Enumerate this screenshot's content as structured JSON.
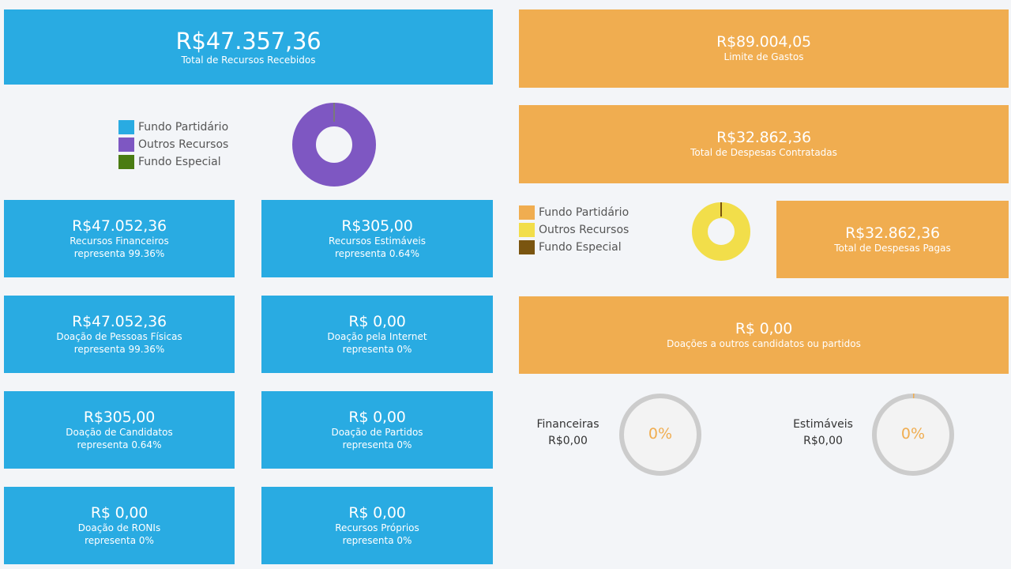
{
  "colors": {
    "blue": "#29abe2",
    "orange": "#f0ad50",
    "purple": "#7e57c2",
    "green": "#4a7c12",
    "yellow": "#f2de4a",
    "brown": "#7a5510",
    "ring_gray": "#cccccc"
  },
  "receipts": {
    "total": {
      "amount": "R$47.357,36",
      "label": "Total de Recursos Recebidos"
    },
    "legend": [
      {
        "label": "Fundo Partidário",
        "color": "#29abe2"
      },
      {
        "label": "Outros Recursos",
        "color": "#7e57c2"
      },
      {
        "label": "Fundo Especial",
        "color": "#4a7c12"
      }
    ],
    "donut_share": {
      "outros_recursos": 0.99,
      "fundo_partidario": 0.01
    },
    "cards": [
      {
        "amount": "R$47.052,36",
        "label": "Recursos Financeiros",
        "pct": "representa 99.36%"
      },
      {
        "amount": "R$305,00",
        "label": "Recursos Estimáveis",
        "pct": "representa 0.64%"
      },
      {
        "amount": "R$47.052,36",
        "label": "Doação de Pessoas Físicas",
        "pct": "representa 99.36%"
      },
      {
        "amount": "R$ 0,00",
        "label": "Doação pela Internet",
        "pct": "representa 0%"
      },
      {
        "amount": "R$305,00",
        "label": "Doação de Candidatos",
        "pct": "representa 0.64%"
      },
      {
        "amount": "R$ 0,00",
        "label": "Doação de Partidos",
        "pct": "representa 0%"
      },
      {
        "amount": "R$ 0,00",
        "label": "Doação de RONIs",
        "pct": "representa 0%"
      },
      {
        "amount": "R$ 0,00",
        "label": "Recursos Próprios",
        "pct": "representa 0%"
      }
    ]
  },
  "expenses": {
    "limit": {
      "amount": "R$89.004,05",
      "label": "Limite de Gastos"
    },
    "contracted": {
      "amount": "R$32.862,36",
      "label": "Total de Despesas Contratadas"
    },
    "legend": [
      {
        "label": "Fundo Partidário",
        "color": "#f0ad50"
      },
      {
        "label": "Outros Recursos",
        "color": "#f2de4a"
      },
      {
        "label": "Fundo Especial",
        "color": "#7a5510"
      }
    ],
    "donut_share": {
      "outros_recursos": 0.99,
      "fundo_especial": 0.01
    },
    "paid": {
      "amount": "R$32.862,36",
      "label": "Total de Despesas Pagas"
    },
    "donations": {
      "amount": "R$ 0,00",
      "label": "Doações a outros candidatos ou partidos"
    },
    "rings": [
      {
        "title": "Financeiras",
        "value": "R$0,00",
        "pct": "0%",
        "fill": 0
      },
      {
        "title": "Estimáveis",
        "value": "R$0,00",
        "pct": "0%",
        "fill": 0.005
      }
    ]
  }
}
